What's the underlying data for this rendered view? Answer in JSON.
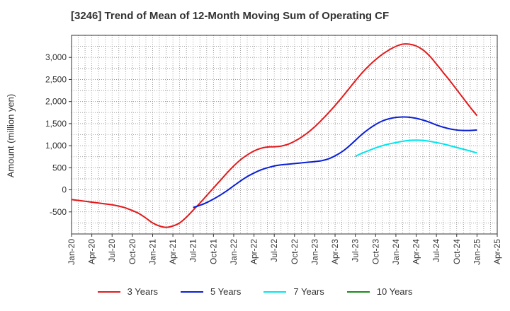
{
  "chart_data": {
    "type": "line",
    "title": "[3246]  Trend of Mean of 12-Month Moving Sum of Operating CF",
    "xlabel": "",
    "ylabel": "Amount (million yen)",
    "ylim": [
      -1000,
      3500
    ],
    "yticks": [
      3000,
      2500,
      2000,
      1500,
      1000,
      500,
      0,
      -500
    ],
    "ytick_labels": [
      "3,000",
      "2,500",
      "2,000",
      "1,500",
      "1,000",
      "500",
      "0",
      "-500"
    ],
    "xticks": [
      "Jan-20",
      "Apr-20",
      "Jul-20",
      "Oct-20",
      "Jan-21",
      "Apr-21",
      "Jul-21",
      "Oct-21",
      "Jan-22",
      "Apr-22",
      "Jul-22",
      "Oct-22",
      "Jan-23",
      "Apr-23",
      "Jul-23",
      "Oct-23",
      "Jan-24",
      "Apr-24",
      "Jul-24",
      "Oct-24",
      "Jan-25",
      "Apr-25"
    ],
    "grid": true,
    "legend_position": "bottom",
    "series": [
      {
        "name": "3 Years",
        "color": "#e31a1c",
        "points": [
          [
            "Jan-20",
            -220
          ],
          [
            "Feb-20",
            -240
          ],
          [
            "Mar-20",
            -260
          ],
          [
            "Apr-20",
            -280
          ],
          [
            "May-20",
            -300
          ],
          [
            "Jun-20",
            -320
          ],
          [
            "Jul-20",
            -340
          ],
          [
            "Aug-20",
            -370
          ],
          [
            "Sep-20",
            -410
          ],
          [
            "Oct-20",
            -470
          ],
          [
            "Nov-20",
            -540
          ],
          [
            "Dec-20",
            -640
          ],
          [
            "Jan-21",
            -750
          ],
          [
            "Feb-21",
            -820
          ],
          [
            "Mar-21",
            -850
          ],
          [
            "Apr-21",
            -820
          ],
          [
            "May-21",
            -750
          ],
          [
            "Jun-21",
            -620
          ],
          [
            "Jul-21",
            -460
          ],
          [
            "Aug-21",
            -300
          ],
          [
            "Sep-21",
            -130
          ],
          [
            "Oct-21",
            40
          ],
          [
            "Nov-21",
            210
          ],
          [
            "Dec-21",
            380
          ],
          [
            "Jan-22",
            540
          ],
          [
            "Feb-22",
            680
          ],
          [
            "Mar-22",
            790
          ],
          [
            "Apr-22",
            880
          ],
          [
            "May-22",
            940
          ],
          [
            "Jun-22",
            970
          ],
          [
            "Jul-22",
            975
          ],
          [
            "Aug-22",
            990
          ],
          [
            "Sep-22",
            1030
          ],
          [
            "Oct-22",
            1100
          ],
          [
            "Nov-22",
            1190
          ],
          [
            "Dec-22",
            1300
          ],
          [
            "Jan-23",
            1430
          ],
          [
            "Feb-23",
            1580
          ],
          [
            "Mar-23",
            1740
          ],
          [
            "Apr-23",
            1910
          ],
          [
            "May-23",
            2090
          ],
          [
            "Jun-23",
            2280
          ],
          [
            "Jul-23",
            2470
          ],
          [
            "Aug-23",
            2650
          ],
          [
            "Sep-23",
            2810
          ],
          [
            "Oct-23",
            2950
          ],
          [
            "Nov-23",
            3070
          ],
          [
            "Dec-23",
            3170
          ],
          [
            "Jan-24",
            3250
          ],
          [
            "Feb-24",
            3300
          ],
          [
            "Mar-24",
            3300
          ],
          [
            "Apr-24",
            3260
          ],
          [
            "May-24",
            3170
          ],
          [
            "Jun-24",
            3030
          ],
          [
            "Jul-24",
            2850
          ],
          [
            "Aug-24",
            2660
          ],
          [
            "Sep-24",
            2470
          ],
          [
            "Oct-24",
            2270
          ],
          [
            "Nov-24",
            2070
          ],
          [
            "Dec-24",
            1870
          ],
          [
            "Jan-25",
            1680
          ]
        ]
      },
      {
        "name": "5 Years",
        "color": "#0a1fd6",
        "points": [
          [
            "Jul-21",
            -400
          ],
          [
            "Aug-21",
            -350
          ],
          [
            "Sep-21",
            -290
          ],
          [
            "Oct-21",
            -210
          ],
          [
            "Nov-21",
            -120
          ],
          [
            "Dec-21",
            -20
          ],
          [
            "Jan-22",
            90
          ],
          [
            "Feb-22",
            200
          ],
          [
            "Mar-22",
            300
          ],
          [
            "Apr-22",
            380
          ],
          [
            "May-22",
            450
          ],
          [
            "Jun-22",
            500
          ],
          [
            "Jul-22",
            540
          ],
          [
            "Aug-22",
            565
          ],
          [
            "Sep-22",
            580
          ],
          [
            "Oct-22",
            595
          ],
          [
            "Nov-22",
            610
          ],
          [
            "Dec-22",
            625
          ],
          [
            "Jan-23",
            640
          ],
          [
            "Feb-23",
            660
          ],
          [
            "Mar-23",
            700
          ],
          [
            "Apr-23",
            770
          ],
          [
            "May-23",
            860
          ],
          [
            "Jun-23",
            980
          ],
          [
            "Jul-23",
            1120
          ],
          [
            "Aug-23",
            1260
          ],
          [
            "Sep-23",
            1380
          ],
          [
            "Oct-23",
            1480
          ],
          [
            "Nov-23",
            1560
          ],
          [
            "Dec-23",
            1610
          ],
          [
            "Jan-24",
            1640
          ],
          [
            "Feb-24",
            1650
          ],
          [
            "Mar-24",
            1645
          ],
          [
            "Apr-24",
            1620
          ],
          [
            "May-24",
            1580
          ],
          [
            "Jun-24",
            1530
          ],
          [
            "Jul-24",
            1470
          ],
          [
            "Aug-24",
            1420
          ],
          [
            "Sep-24",
            1380
          ],
          [
            "Oct-24",
            1355
          ],
          [
            "Nov-24",
            1345
          ],
          [
            "Dec-24",
            1345
          ],
          [
            "Jan-25",
            1355
          ]
        ]
      },
      {
        "name": "7 Years",
        "color": "#00e5ee",
        "points": [
          [
            "Jul-23",
            760
          ],
          [
            "Aug-23",
            830
          ],
          [
            "Sep-23",
            890
          ],
          [
            "Oct-23",
            950
          ],
          [
            "Nov-23",
            1000
          ],
          [
            "Dec-23",
            1040
          ],
          [
            "Jan-24",
            1070
          ],
          [
            "Feb-24",
            1100
          ],
          [
            "Mar-24",
            1120
          ],
          [
            "Apr-24",
            1125
          ],
          [
            "May-24",
            1120
          ],
          [
            "Jun-24",
            1100
          ],
          [
            "Jul-24",
            1070
          ],
          [
            "Aug-24",
            1040
          ],
          [
            "Sep-24",
            1000
          ],
          [
            "Oct-24",
            960
          ],
          [
            "Nov-24",
            920
          ],
          [
            "Dec-24",
            880
          ],
          [
            "Jan-25",
            835
          ]
        ]
      },
      {
        "name": "10 Years",
        "color": "#1a8a1a",
        "points": []
      }
    ]
  }
}
